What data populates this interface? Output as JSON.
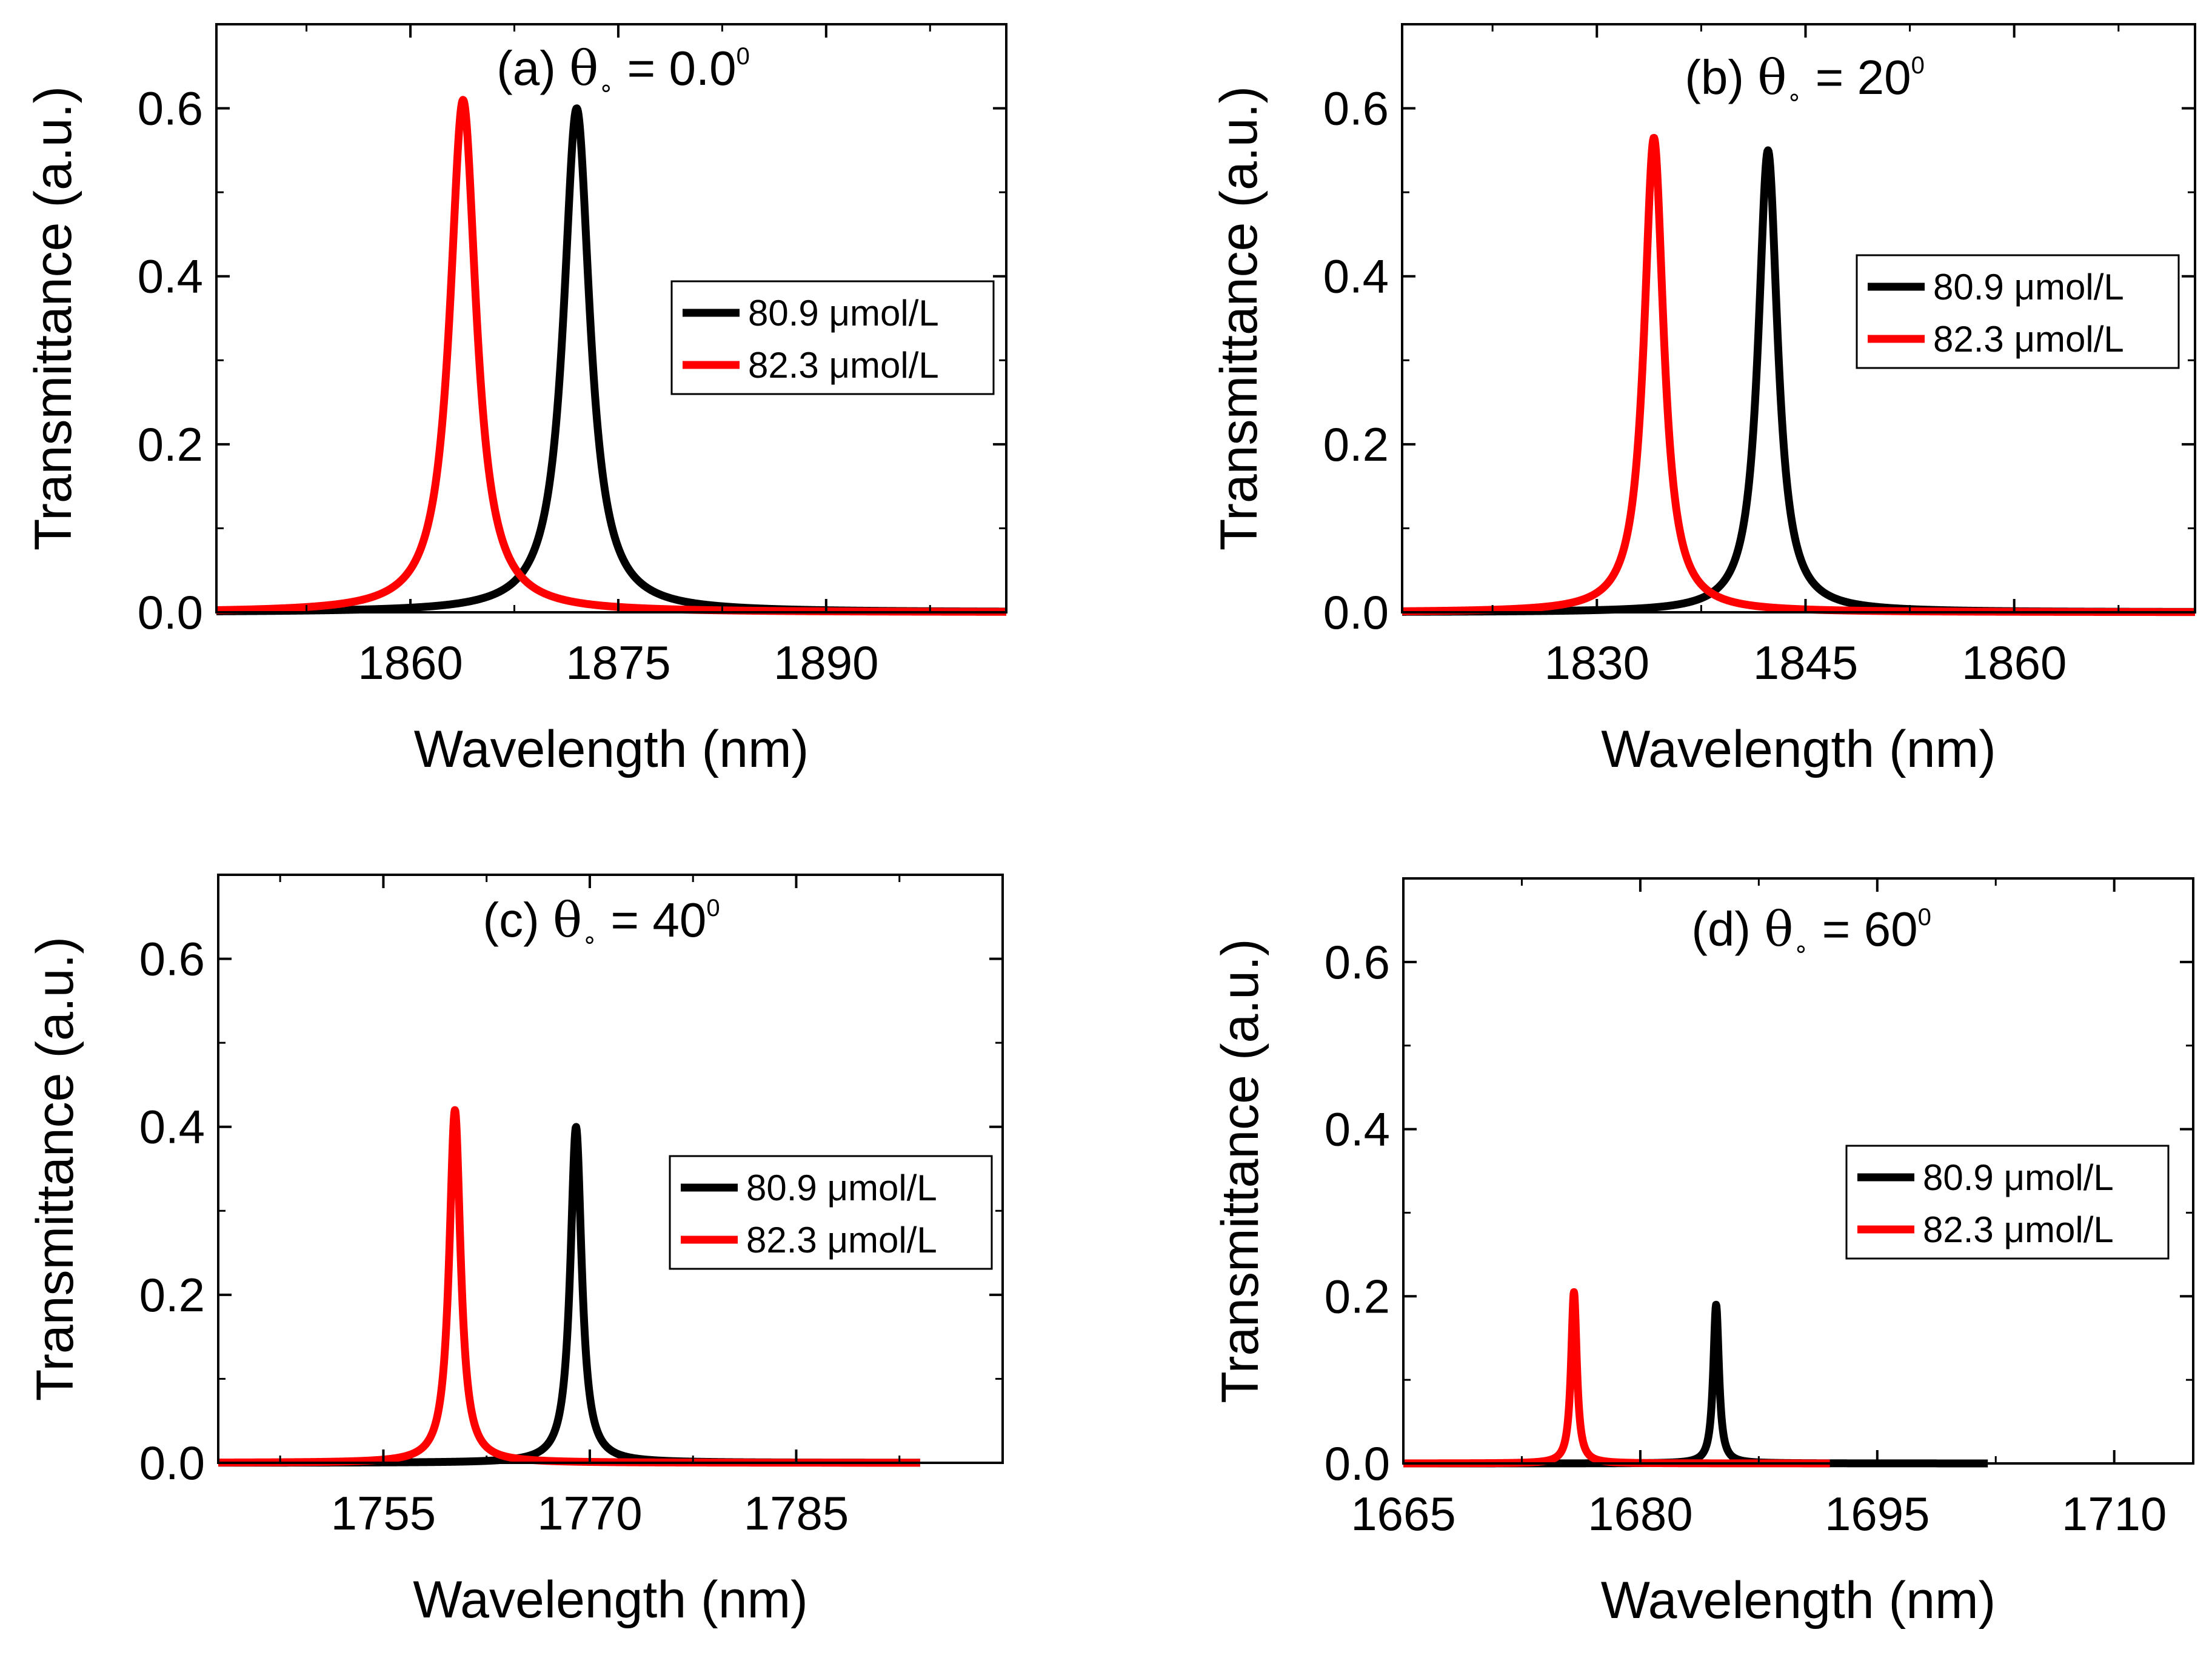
{
  "chart_data": [
    {
      "type": "line",
      "title_prefix": "(a) ",
      "title_symbol": "θ",
      "title_sub": "∘",
      "title_value": " = 0.0",
      "title_sup": "0",
      "xlabel": "Wavelength (nm)",
      "ylabel": "Transmittance (a.u.)",
      "xlim": [
        1846,
        1903
      ],
      "ylim": [
        0,
        0.7
      ],
      "xticks": [
        1860,
        1875,
        1890
      ],
      "yticks": [
        0.0,
        0.2,
        0.4,
        0.6
      ],
      "ytick_labels": [
        "0.0",
        "0.2",
        "0.4",
        "0.6"
      ],
      "legend_position": "center-right",
      "series": [
        {
          "name": "80.9 μmol/L",
          "color": "#000000",
          "peak_x": 1872.0,
          "peak_y": 0.6,
          "half_width": 1.15,
          "x_range": [
            1846,
            1903
          ]
        },
        {
          "name": "82.3 μmol/L",
          "color": "#ff0000",
          "peak_x": 1863.8,
          "peak_y": 0.61,
          "half_width": 1.15,
          "x_range": [
            1846,
            1903
          ]
        }
      ]
    },
    {
      "type": "line",
      "title_prefix": "(b) ",
      "title_symbol": "θ",
      "title_sub": "∘",
      "title_value": " = 20",
      "title_sup": "0",
      "xlabel": "Wavelength (nm)",
      "ylabel": "Transmittance (a.u.)",
      "xlim": [
        1816,
        1873
      ],
      "ylim": [
        0,
        0.7
      ],
      "xticks": [
        1830,
        1845,
        1860
      ],
      "yticks": [
        0.0,
        0.2,
        0.4,
        0.6
      ],
      "ytick_labels": [
        "0.0",
        "0.2",
        "0.4",
        "0.6"
      ],
      "legend_position": "center-right",
      "series": [
        {
          "name": "80.9 μmol/L",
          "color": "#000000",
          "peak_x": 1842.3,
          "peak_y": 0.55,
          "half_width": 0.85,
          "x_range": [
            1816,
            1873
          ]
        },
        {
          "name": "82.3 μmol/L",
          "color": "#ff0000",
          "peak_x": 1834.1,
          "peak_y": 0.565,
          "half_width": 0.85,
          "x_range": [
            1816,
            1873
          ]
        }
      ]
    },
    {
      "type": "line",
      "title_prefix": "(c) ",
      "title_symbol": "θ",
      "title_sub": "∘",
      "title_value": " = 40",
      "title_sup": "0",
      "xlabel": "Wavelength (nm)",
      "ylabel": "Transmittance (a.u.)",
      "xlim": [
        1743,
        1800
      ],
      "ylim": [
        0,
        0.7
      ],
      "xticks": [
        1755,
        1770,
        1785
      ],
      "yticks": [
        0.0,
        0.2,
        0.4,
        0.6
      ],
      "ytick_labels": [
        "0.0",
        "0.2",
        "0.4",
        "0.6"
      ],
      "legend_position": "center-right",
      "series": [
        {
          "name": "80.9 μmol/L",
          "color": "#000000",
          "peak_x": 1769.0,
          "peak_y": 0.4,
          "half_width": 0.5,
          "x_range": [
            1743,
            1794
          ]
        },
        {
          "name": "82.3 μmol/L",
          "color": "#ff0000",
          "peak_x": 1760.2,
          "peak_y": 0.42,
          "half_width": 0.5,
          "x_range": [
            1743,
            1794
          ]
        }
      ]
    },
    {
      "type": "line",
      "title_prefix": "(d) ",
      "title_symbol": "θ",
      "title_sub": "∘",
      "title_value": " = 60",
      "title_sup": "0",
      "xlabel": "Wavelength (nm)",
      "ylabel": "Transmittance (a.u.)",
      "xlim": [
        1665,
        1715
      ],
      "ylim": [
        0,
        0.7
      ],
      "xticks": [
        1665,
        1680,
        1695,
        1710
      ],
      "yticks": [
        0.0,
        0.2,
        0.4,
        0.6
      ],
      "ytick_labels": [
        "0.0",
        "0.2",
        "0.4",
        "0.6"
      ],
      "legend_position": "center-right",
      "series": [
        {
          "name": "80.9 μmol/L",
          "color": "#000000",
          "peak_x": 1684.8,
          "peak_y": 0.19,
          "half_width": 0.22,
          "x_range": [
            1665,
            1702
          ]
        },
        {
          "name": "82.3 μmol/L",
          "color": "#ff0000",
          "peak_x": 1675.8,
          "peak_y": 0.205,
          "half_width": 0.22,
          "x_range": [
            1665,
            1692
          ]
        }
      ]
    }
  ]
}
